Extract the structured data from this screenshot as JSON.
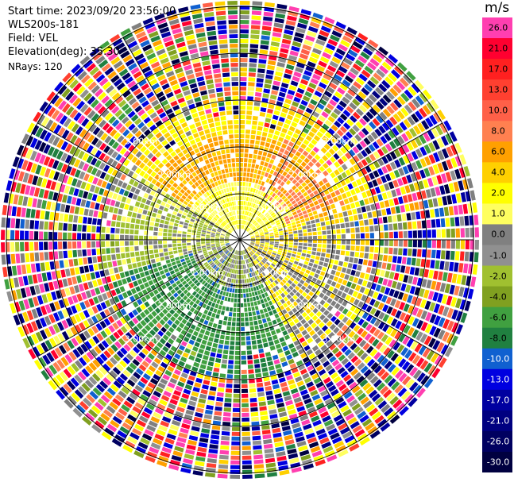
{
  "info": {
    "start_time": "Start time: 2023/09/20 23:56:00",
    "instrument": "WLS200s-181",
    "field": "Field: VEL",
    "elevation": "Elevation(deg): 35.30",
    "nrays": "NRays: 120"
  },
  "colorbar": {
    "unit": "m/s",
    "entries": [
      {
        "label": "26.0",
        "color": "#ff3fb0"
      },
      {
        "label": "21.0",
        "color": "#ff0030"
      },
      {
        "label": "17.0",
        "color": "#ff2020"
      },
      {
        "label": "13.0",
        "color": "#ff4030"
      },
      {
        "label": "10.0",
        "color": "#ff6048"
      },
      {
        "label": "8.0",
        "color": "#ff8050"
      },
      {
        "label": "6.0",
        "color": "#ffa000"
      },
      {
        "label": "4.0",
        "color": "#ffd000"
      },
      {
        "label": "2.0",
        "color": "#ffff00"
      },
      {
        "label": "1.0",
        "color": "#ffff60"
      },
      {
        "label": "0.0",
        "color": "#808080"
      },
      {
        "label": "-1.0",
        "color": "#909090"
      },
      {
        "label": "-2.0",
        "color": "#a0c030"
      },
      {
        "label": "-4.0",
        "color": "#80a020"
      },
      {
        "label": "-6.0",
        "color": "#40a040"
      },
      {
        "label": "-8.0",
        "color": "#208040"
      },
      {
        "label": "-10.0",
        "color": "#1060d0"
      },
      {
        "label": "-13.0",
        "color": "#0000e0"
      },
      {
        "label": "-17.0",
        "color": "#0000a0"
      },
      {
        "label": "-21.0",
        "color": "#000080"
      },
      {
        "label": "-26.0",
        "color": "#000060"
      },
      {
        "label": "-30.0",
        "color": "#000040"
      }
    ]
  },
  "range_labels": [
    "1.00km",
    "2.00km",
    "3.00km"
  ],
  "colors": {
    "grid": "#000000",
    "range_label": "#ffffff"
  }
}
